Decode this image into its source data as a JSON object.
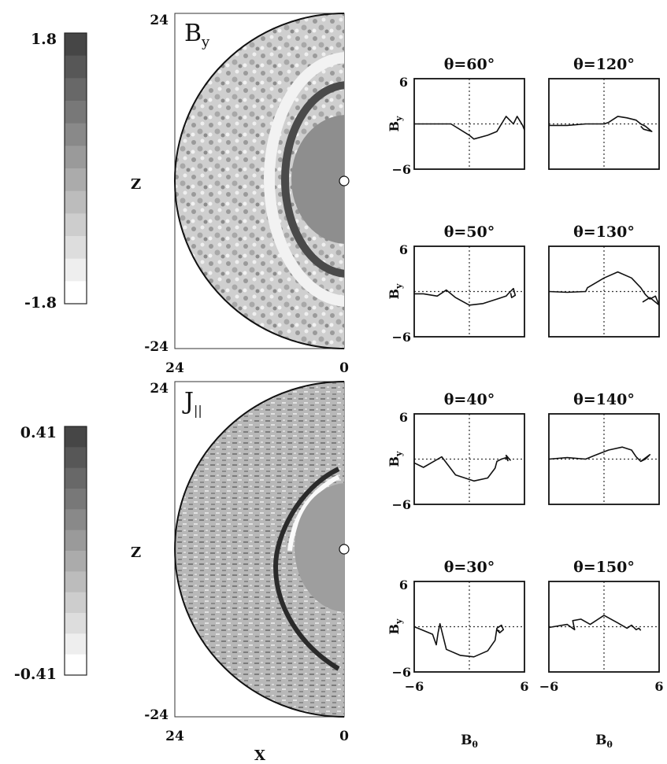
{
  "colorbars": [
    {
      "max_label": "1.8",
      "min_label": "-1.8",
      "levels": 12
    },
    {
      "max_label": "0.41",
      "min_label": "-0.41",
      "levels": 12
    }
  ],
  "maps": [
    {
      "field_label": "B",
      "field_sub": "y",
      "y_label": "Z",
      "ytick_top": "24",
      "ytick_bottom": "-24",
      "xtick_left": "24",
      "xtick_right": "0"
    },
    {
      "field_label": "J",
      "field_sub": "||",
      "y_label": "Z",
      "ytick_top": "24",
      "ytick_bottom": "-24",
      "xtick_left": "24",
      "xtick_right": "0"
    }
  ],
  "map_x_label": "X",
  "hodograms": {
    "y_label": "B",
    "y_label_sub": "y",
    "x_label": "B",
    "x_label_sub": "θ",
    "ytick_top": "6",
    "ytick_bottom": "−6",
    "xtick_left": "−6",
    "xtick_right": "6",
    "panel_titles": [
      "θ=60°",
      "θ=120°",
      "θ=50°",
      "θ=130°",
      "θ=40°",
      "θ=140°",
      "θ=30°",
      "θ=150°"
    ]
  },
  "chart_data": [
    {
      "type": "heatmap",
      "title": "By",
      "xlabel": "X",
      "ylabel": "Z",
      "xlim": [
        24,
        0
      ],
      "ylim": [
        -24,
        24
      ],
      "colorbar_range": [
        -1.8,
        1.8
      ]
    },
    {
      "type": "heatmap",
      "title": "J||",
      "xlabel": "X",
      "ylabel": "Z",
      "xlim": [
        24,
        0
      ],
      "ylim": [
        -24,
        24
      ],
      "colorbar_range": [
        -0.41,
        0.41
      ]
    },
    {
      "type": "line",
      "panels": [
        {
          "title": "θ=60°",
          "x": [
            -6.0,
            -4.0,
            -3.0,
            -2.0,
            0.0,
            0.5,
            2.0,
            3.0,
            3.5,
            4.0,
            4.4,
            4.8,
            5.2,
            5.8,
            6.0
          ],
          "y": [
            0.0,
            0.0,
            0.0,
            0.0,
            -1.5,
            -2.0,
            -1.5,
            -1.0,
            0.0,
            1.0,
            0.5,
            0.0,
            1.0,
            -0.2,
            -0.8
          ]
        },
        {
          "title": "θ=120°",
          "x": [
            -6.0,
            -4.0,
            -2.0,
            0.0,
            0.5,
            1.5,
            2.5,
            3.5,
            4.0,
            4.5,
            4.8,
            5.2,
            4.3,
            4.0
          ],
          "y": [
            -0.2,
            -0.2,
            0.0,
            0.0,
            0.2,
            1.0,
            0.8,
            0.5,
            0.0,
            -0.3,
            -0.6,
            -1.0,
            -0.7,
            -0.3
          ]
        },
        {
          "title": "θ=50°",
          "x": [
            -6.0,
            -5.0,
            -3.5,
            -2.5,
            -1.5,
            0.0,
            1.5,
            3.0,
            4.0,
            4.3,
            4.8,
            5.0,
            4.6,
            4.5
          ],
          "y": [
            -0.3,
            -0.3,
            -0.6,
            0.2,
            -0.8,
            -1.8,
            -1.6,
            -1.0,
            -0.6,
            -0.2,
            0.4,
            -0.5,
            -0.8,
            -0.2
          ]
        },
        {
          "title": "θ=130°",
          "x": [
            -6.0,
            -4.0,
            -2.0,
            -1.8,
            0.0,
            1.5,
            3.0,
            4.0,
            4.5,
            5.0,
            5.6,
            6.0,
            5.0,
            4.2
          ],
          "y": [
            0.0,
            -0.1,
            0.0,
            0.5,
            1.8,
            2.6,
            1.8,
            0.5,
            -0.4,
            -1.0,
            -0.6,
            -1.8,
            -0.8,
            -1.4
          ]
        },
        {
          "title": "θ=40°",
          "x": [
            -6.0,
            -5.0,
            -4.0,
            -3.0,
            -1.5,
            0.5,
            2.0,
            2.8,
            3.0,
            3.5,
            4.0,
            4.2,
            4.0,
            4.5
          ],
          "y": [
            -0.5,
            -1.1,
            -0.4,
            0.3,
            -2.1,
            -2.9,
            -2.5,
            -1.2,
            -0.3,
            0.0,
            0.2,
            -0.2,
            0.5,
            -0.2
          ]
        },
        {
          "title": "θ=140°",
          "x": [
            -6.0,
            -4.0,
            -2.0,
            -1.0,
            0.5,
            2.0,
            3.0,
            3.5,
            4.0,
            4.5,
            5.0,
            4.0
          ],
          "y": [
            0.0,
            0.2,
            0.0,
            0.5,
            1.2,
            1.6,
            1.2,
            0.3,
            -0.3,
            0.0,
            0.6,
            -0.3
          ]
        },
        {
          "title": "θ=30°",
          "x": [
            -6.0,
            -4.0,
            -3.6,
            -3.4,
            -3.2,
            -2.5,
            -1.0,
            0.5,
            2.0,
            2.8,
            3.0,
            3.5,
            3.7,
            3.3,
            3.0,
            3.3
          ],
          "y": [
            0.0,
            -1.0,
            -2.4,
            -0.8,
            0.4,
            -3.0,
            -3.8,
            -4.0,
            -3.2,
            -1.8,
            -0.2,
            0.2,
            -0.4,
            -0.8,
            -0.4,
            -0.6
          ]
        },
        {
          "title": "θ=150°",
          "x": [
            -6.0,
            -4.0,
            -3.2,
            -3.4,
            -2.5,
            -1.5,
            0.0,
            1.5,
            2.5,
            3.0,
            3.5,
            3.8,
            4.0
          ],
          "y": [
            -0.1,
            0.3,
            -0.4,
            0.8,
            1.0,
            0.3,
            1.5,
            0.5,
            -0.2,
            0.2,
            -0.4,
            -0.2,
            -0.5
          ]
        }
      ],
      "xlim": [
        -6,
        6
      ],
      "ylim": [
        -6,
        6
      ],
      "grid": "dashed zero lines"
    }
  ]
}
